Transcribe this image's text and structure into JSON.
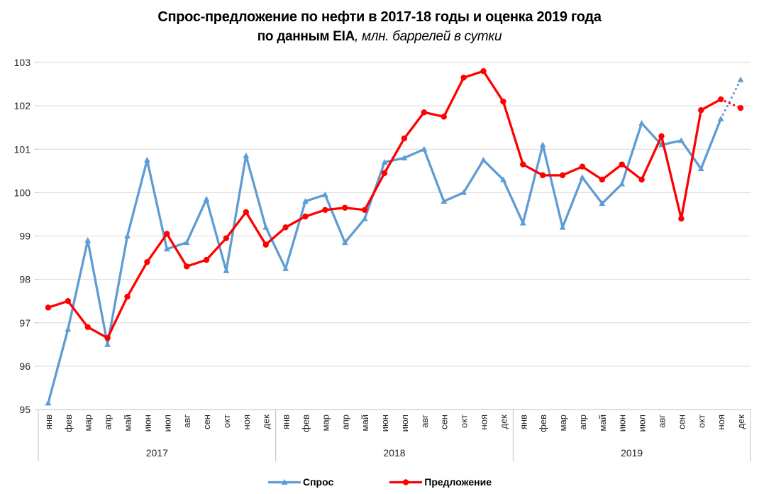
{
  "colors": {
    "demand": "#5E9CD3",
    "supply": "#FF0000",
    "grid": "#D9D9D9",
    "axis_line": "#BFBFBF",
    "label": "#262626",
    "title_text": "#000000"
  },
  "chart_data": {
    "type": "line",
    "title": "Спрос-предложение по нефти в 2017-18 годы и оценка 2019 года",
    "subtitle_bold": "по данным EIA",
    "subtitle_italic": ", млн. баррелей в сутки",
    "ylim": [
      95,
      103
    ],
    "ytick_step": 1,
    "grid": true,
    "legend_position": "bottom",
    "years": [
      "2017",
      "2018",
      "2019"
    ],
    "months": [
      "янв",
      "фев",
      "мар",
      "апр",
      "май",
      "июн",
      "июл",
      "авг",
      "сен",
      "окт",
      "ноя",
      "дек"
    ],
    "forecast_note": "last segment (ноя-дек 2019) drawn dotted = estimate",
    "series": [
      {
        "key": "demand",
        "name": "Спрос",
        "color": "#5E9CD3",
        "marker": "triangle",
        "forecast_last_segment": true,
        "values": [
          95.15,
          96.85,
          98.9,
          96.5,
          99.0,
          100.75,
          98.7,
          98.85,
          99.85,
          98.2,
          100.85,
          99.2,
          98.25,
          99.8,
          99.95,
          98.85,
          99.4,
          100.7,
          100.8,
          101.0,
          99.8,
          100.0,
          100.75,
          100.3,
          99.3,
          101.1,
          99.2,
          100.35,
          99.75,
          100.2,
          101.6,
          101.1,
          101.2,
          100.55,
          101.7,
          102.6
        ]
      },
      {
        "key": "supply",
        "name": "Предложение",
        "color": "#FF0000",
        "marker": "circle",
        "forecast_last_segment": true,
        "values": [
          97.35,
          97.5,
          96.9,
          96.65,
          97.6,
          98.4,
          99.05,
          98.3,
          98.45,
          98.95,
          99.55,
          98.8,
          99.2,
          99.45,
          99.6,
          99.65,
          99.6,
          100.45,
          101.25,
          101.85,
          101.75,
          102.65,
          102.8,
          102.1,
          100.65,
          100.4,
          100.4,
          100.6,
          100.3,
          100.65,
          100.3,
          101.3,
          99.4,
          101.9,
          102.15,
          101.95
        ]
      }
    ]
  }
}
